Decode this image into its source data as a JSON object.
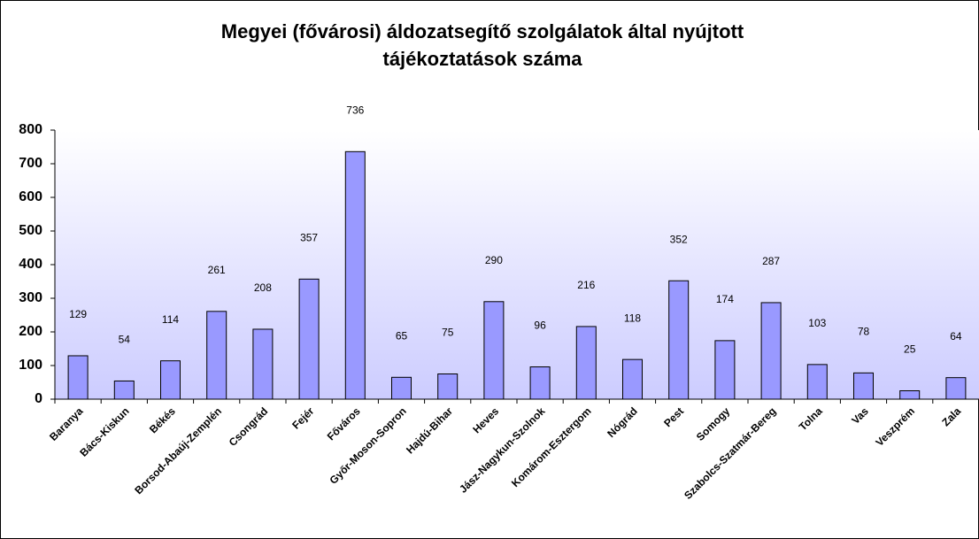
{
  "chart_data": {
    "type": "bar",
    "title": [
      "Megyei (fővárosi) áldozatsegítő szolgálatok által nyújtott",
      "tájékoztatások száma"
    ],
    "categories": [
      "Baranya",
      "Bács-Kiskun",
      "Békés",
      "Borsod-Abaúj-Zemplén",
      "Csongrád",
      "Fejér",
      "Főváros",
      "Győr-Moson-Sopron",
      "Hajdú-Bihar",
      "Heves",
      "Jász-Nagykun-Szolnok",
      "Komárom-Esztergom",
      "Nógrád",
      "Pest",
      "Somogy",
      "Szabolcs-Szatmár-Bereg",
      "Tolna",
      "Vas",
      "Veszprém",
      "Zala"
    ],
    "values": [
      129,
      54,
      114,
      261,
      208,
      357,
      736,
      65,
      75,
      290,
      96,
      216,
      118,
      352,
      174,
      287,
      103,
      78,
      25,
      64
    ],
    "color": "#9999ff",
    "ylim": [
      0,
      800
    ],
    "yticks": [
      0,
      100,
      200,
      300,
      400,
      500,
      600,
      700,
      800
    ],
    "grid": false
  }
}
